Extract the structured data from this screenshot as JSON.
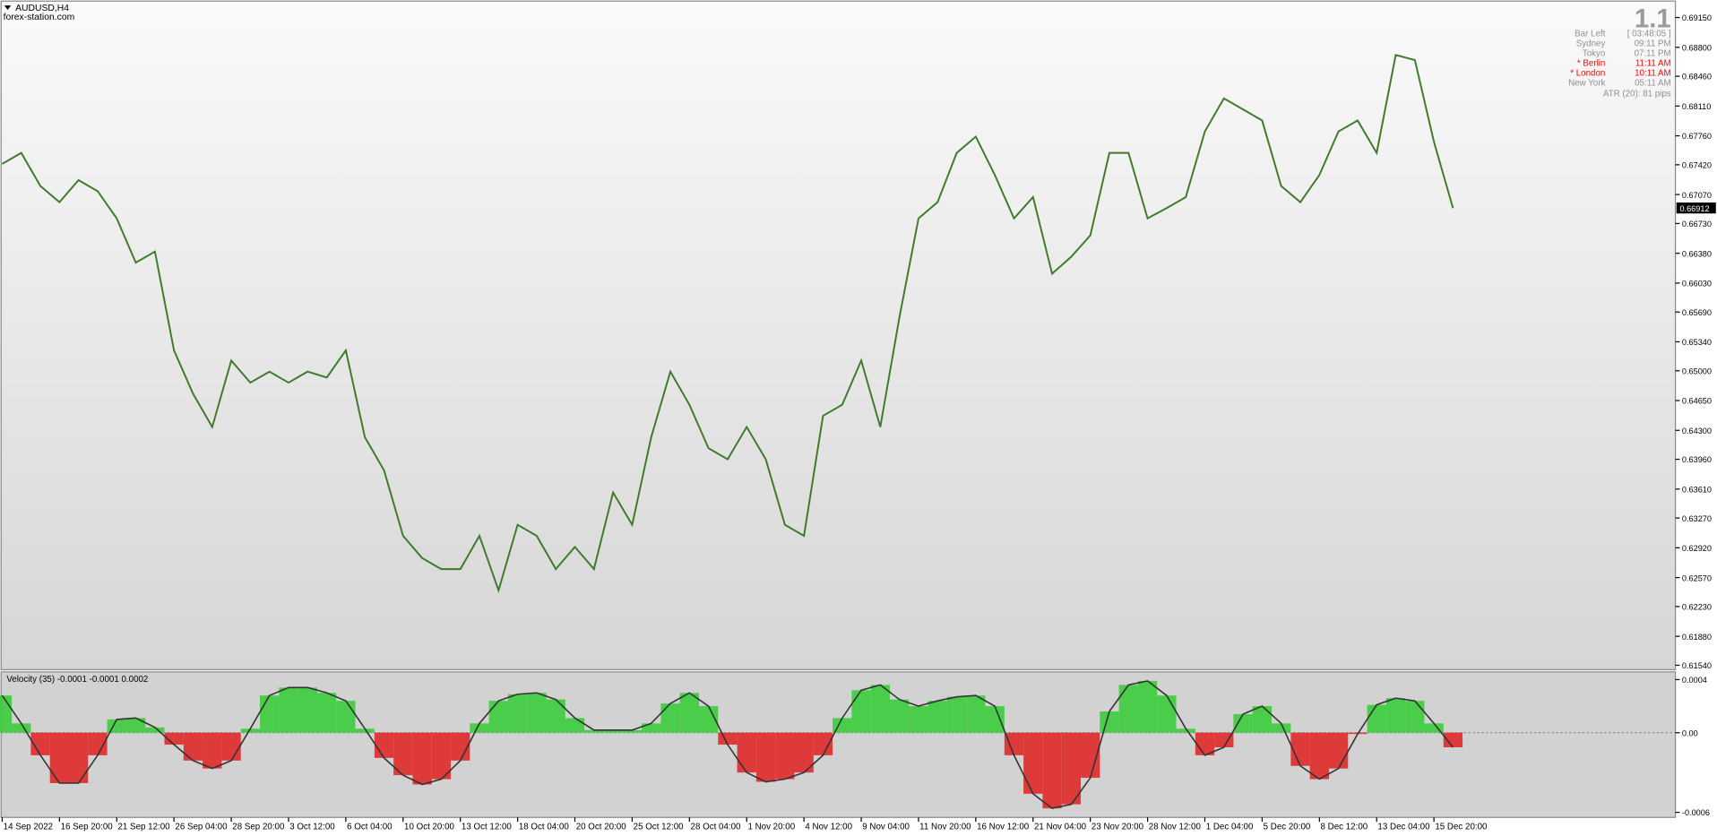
{
  "header": {
    "symbol": "AUDUSD,H4",
    "source": "forex-station.com"
  },
  "info_panel": {
    "version": "1.1",
    "rows": [
      {
        "label": "Bar Left",
        "value": "[ 03:48:05 ]",
        "color": "#909090"
      },
      {
        "label": "Sydney",
        "value": "09:11 PM",
        "color": "#909090"
      },
      {
        "label": "Tokyo",
        "value": "07:11 PM",
        "color": "#909090"
      },
      {
        "label": "* Berlin",
        "value": "11:11 AM",
        "color": "#ff0000"
      },
      {
        "label": "* London",
        "value": "10:11 AM",
        "color": "#ff0000"
      },
      {
        "label": "New York",
        "value": "05:11 AM",
        "color": "#909090"
      }
    ],
    "atr": "ATR (20): 81 pips"
  },
  "chart_data": [
    {
      "type": "line",
      "color": "#3d7a2a",
      "categories": [
        "14 Sep 2022",
        null,
        null,
        "16 Sep 20:00",
        null,
        null,
        "21 Sep 12:00",
        null,
        null,
        "26 Sep 04:00",
        null,
        null,
        "28 Sep 20:00",
        null,
        null,
        "3 Oct 12:00",
        null,
        null,
        "6 Oct 04:00",
        null,
        null,
        "10 Oct 20:00",
        null,
        null,
        "13 Oct 12:00",
        null,
        null,
        "18 Oct 04:00",
        null,
        null,
        "20 Oct 20:00",
        null,
        null,
        "25 Oct 12:00",
        null,
        null,
        "28 Oct 04:00",
        null,
        null,
        "1 Nov 20:00",
        null,
        null,
        "4 Nov 12:00",
        null,
        null,
        "9 Nov 04:00",
        null,
        null,
        "11 Nov 20:00",
        null,
        null,
        "16 Nov 12:00",
        null,
        null,
        "21 Nov 04:00",
        null,
        null,
        "23 Nov 20:00",
        null,
        null,
        "28 Nov 12:00",
        null,
        null,
        "1 Dec 04:00",
        null,
        null,
        "5 Dec 20:00",
        null,
        null,
        "8 Dec 12:00",
        null,
        null,
        "13 Dec 04:00",
        null,
        null,
        "15 Dec 20:00",
        null
      ],
      "values": [
        0.6743,
        0.6756,
        0.6717,
        0.6698,
        0.6724,
        0.6711,
        0.6679,
        0.6627,
        0.664,
        0.6524,
        0.6473,
        0.6434,
        0.6512,
        0.6486,
        0.6499,
        0.6486,
        0.6499,
        0.6492,
        0.6524,
        0.6422,
        0.6383,
        0.6306,
        0.628,
        0.6267,
        0.6267,
        0.6306,
        0.6242,
        0.6319,
        0.6306,
        0.6267,
        0.6293,
        0.6267,
        0.6357,
        0.6319,
        0.6422,
        0.6499,
        0.646,
        0.6409,
        0.6396,
        0.6434,
        0.6396,
        0.6319,
        0.6306,
        0.6447,
        0.646,
        0.6512,
        0.6434,
        0.6563,
        0.6679,
        0.6698,
        0.6756,
        0.6775,
        0.673,
        0.6679,
        0.6704,
        0.6614,
        0.6634,
        0.6659,
        0.6756,
        0.6756,
        0.6679,
        0.6691,
        0.6704,
        0.6781,
        0.682,
        0.6807,
        0.6794,
        0.6717,
        0.6698,
        0.673,
        0.6781,
        0.6794,
        0.6756,
        0.6871,
        0.6865,
        0.6769,
        0.6691
      ],
      "ylim": [
        0.61501,
        0.6933
      ],
      "yticks": [
        {
          "value": 0.6915,
          "label": "0.69150"
        },
        {
          "value": 0.688,
          "label": "0.68800"
        },
        {
          "value": 0.6846,
          "label": "0.68460"
        },
        {
          "value": 0.6811,
          "label": "0.68110"
        },
        {
          "value": 0.6776,
          "label": "0.67760"
        },
        {
          "value": 0.6742,
          "label": "0.67420"
        },
        {
          "value": 0.6707,
          "label": "0.67070"
        },
        {
          "value": 0.6673,
          "label": "0.66730"
        },
        {
          "value": 0.6638,
          "label": "0.66380"
        },
        {
          "value": 0.6603,
          "label": "0.66030"
        },
        {
          "value": 0.6569,
          "label": "0.65690"
        },
        {
          "value": 0.6534,
          "label": "0.65340"
        },
        {
          "value": 0.65,
          "label": "0.65000"
        },
        {
          "value": 0.6465,
          "label": "0.64650"
        },
        {
          "value": 0.643,
          "label": "0.64300"
        },
        {
          "value": 0.6396,
          "label": "0.63960"
        },
        {
          "value": 0.6361,
          "label": "0.63610"
        },
        {
          "value": 0.6327,
          "label": "0.63270"
        },
        {
          "value": 0.6292,
          "label": "0.62920"
        },
        {
          "value": 0.6257,
          "label": "0.62570"
        },
        {
          "value": 0.6223,
          "label": "0.62230"
        },
        {
          "value": 0.6188,
          "label": "0.61880"
        },
        {
          "value": 0.6154,
          "label": "0.61540"
        }
      ],
      "last_price": {
        "value": 0.66912,
        "label": "0.66912"
      }
    },
    {
      "type": "bar",
      "title": "Velocity (35) -0.0001 -0.0001 0.0002",
      "color_up": "#33cc33",
      "color_down": "#e02020",
      "values": [
        0.00028,
        7e-05,
        -0.00017,
        -0.00038,
        -0.00038,
        -0.00017,
        0.0001,
        0.00011,
        4e-05,
        -9e-05,
        -0.00021,
        -0.00027,
        -0.00021,
        3e-05,
        0.00028,
        0.00034,
        0.00034,
        0.0003,
        0.00024,
        3e-05,
        -0.00019,
        -0.00032,
        -0.00039,
        -0.00035,
        -0.00021,
        7e-05,
        0.00024,
        0.00029,
        0.0003,
        0.00025,
        0.00011,
        2e-05,
        2e-05,
        2e-05,
        7e-05,
        0.00022,
        0.0003,
        0.0002,
        -9e-05,
        -0.0003,
        -0.00037,
        -0.00035,
        -0.0003,
        -0.00017,
        0.00011,
        0.00032,
        0.00036,
        0.00025,
        0.0002,
        0.00024,
        0.00027,
        0.00028,
        0.0002,
        -0.00017,
        -0.00046,
        -0.00057,
        -0.00054,
        -0.00034,
        0.00016,
        0.00036,
        0.00039,
        0.00028,
        3e-05,
        -0.00017,
        -0.00011,
        0.00014,
        0.0002,
        7e-05,
        -0.00025,
        -0.00035,
        -0.00027,
        -1e-05,
        0.00021,
        0.00026,
        0.00024,
        7e-05,
        -0.00011
      ],
      "ylim": [
        -0.00063,
        0.00045
      ],
      "yticks": [
        -0.0006,
        {
          "value": 0,
          "label": "0.00"
        },
        0.0004
      ]
    }
  ]
}
